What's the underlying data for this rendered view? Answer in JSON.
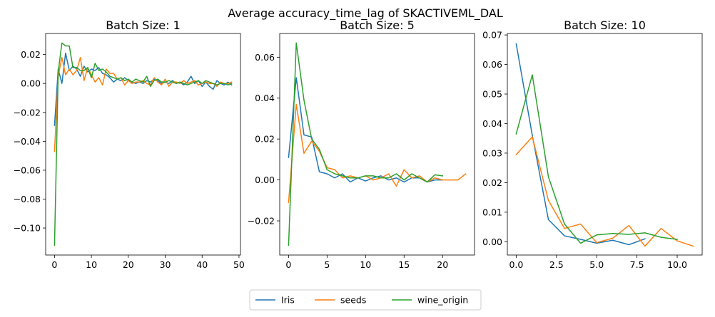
{
  "figure": {
    "title": "Average accuracy_time_lag of SKACTIVEML_DAL"
  },
  "legend": {
    "placement": "bottom-center",
    "entries": [
      {
        "label": "Iris",
        "color": "#1f77b4"
      },
      {
        "label": "seeds",
        "color": "#ff7f0e"
      },
      {
        "label": "wine_origin",
        "color": "#2ca02c"
      }
    ]
  },
  "chart_data": [
    {
      "type": "line",
      "title": "Batch Size: 1",
      "xlim": [
        -2.4,
        50.4
      ],
      "ylim": [
        -0.1187,
        0.0346
      ],
      "xticks": [
        0,
        10,
        20,
        30,
        40,
        50
      ],
      "xtick_labels": [
        "0",
        "10",
        "20",
        "30",
        "40",
        "50"
      ],
      "yticks": [
        -0.1,
        -0.08,
        -0.06,
        -0.04,
        -0.02,
        0.0,
        0.02
      ],
      "ytick_labels": [
        "−0.10",
        "−0.08",
        "−0.06",
        "−0.04",
        "−0.02",
        "0.00",
        "0.02"
      ],
      "grid": false,
      "series": [
        {
          "name": "Iris",
          "color": "#1f77b4",
          "x": [
            0,
            1,
            2,
            3,
            4,
            5,
            6,
            7,
            8,
            9,
            10,
            11,
            12,
            13,
            14,
            15,
            16,
            17,
            18,
            19,
            20,
            21,
            22,
            23,
            24,
            25,
            26,
            27,
            28,
            29,
            30,
            31,
            32,
            33,
            34,
            35,
            36,
            37,
            38,
            39,
            40,
            41,
            42,
            43,
            44,
            45,
            46,
            47,
            48
          ],
          "y": [
            -0.029,
            0.01,
            0.0,
            0.021,
            0.009,
            0.012,
            0.01,
            0.005,
            0.012,
            0.008,
            0.01,
            0.009,
            0.011,
            0.007,
            0.006,
            0.004,
            0.001,
            0.003,
            0.002,
            0.004,
            0.002,
            0.001,
            0.0,
            0.001,
            0.0,
            0.002,
            0.001,
            0.003,
            0.002,
            0.0,
            0.001,
            0.0,
            0.002,
            0.0,
            0.001,
            -0.001,
            0.001,
            0.005,
            0.0,
            0.002,
            -0.002,
            0.001,
            -0.002,
            -0.004,
            0.002,
            0.0,
            -0.001,
            0.001,
            -0.001
          ]
        },
        {
          "name": "seeds",
          "color": "#ff7f0e",
          "x": [
            0,
            1,
            2,
            3,
            4,
            5,
            6,
            7,
            8,
            9,
            10,
            11,
            12,
            13,
            14,
            15,
            16,
            17,
            18,
            19,
            20,
            21,
            22,
            23,
            24,
            25,
            26,
            27,
            28,
            29,
            30,
            31,
            32,
            33,
            34,
            35,
            36,
            37,
            38,
            39,
            40,
            41,
            42,
            43,
            44,
            45,
            46,
            47,
            48
          ],
          "y": [
            -0.047,
            0.005,
            0.018,
            0.006,
            0.01,
            0.006,
            0.009,
            0.018,
            0.002,
            0.011,
            0.006,
            0.001,
            0.004,
            -0.001,
            0.01,
            0.007,
            0.007,
            0.003,
            0.004,
            -0.001,
            0.002,
            0.0,
            0.001,
            0.001,
            0.002,
            0.0,
            -0.001,
            0.004,
            0.001,
            -0.001,
            0.003,
            -0.002,
            0.001,
            0.001,
            0.0,
            0.002,
            0.0,
            0.001,
            0.002,
            -0.001,
            0.0,
            0.001,
            0.0,
            0.0,
            -0.002,
            0.001,
            0.0,
            0.0,
            0.001
          ]
        },
        {
          "name": "wine_origin",
          "color": "#2ca02c",
          "x": [
            0,
            1,
            2,
            3,
            4,
            5,
            6,
            7,
            8,
            9,
            10,
            11,
            12,
            13,
            14,
            15,
            16,
            17,
            18,
            19,
            20,
            21,
            22,
            23,
            24,
            25,
            26,
            27,
            28,
            29,
            30,
            31,
            32,
            33,
            34,
            35,
            36,
            37,
            38,
            39,
            40,
            41,
            42,
            43,
            44,
            45,
            46,
            47,
            48
          ],
          "y": [
            -0.112,
            0.008,
            0.028,
            0.026,
            0.026,
            0.011,
            0.011,
            0.009,
            0.009,
            0.011,
            0.004,
            0.014,
            0.009,
            0.01,
            0.008,
            0.005,
            0.004,
            0.003,
            0.004,
            0.002,
            0.003,
            0.001,
            0.003,
            0.002,
            0.001,
            0.005,
            -0.002,
            0.002,
            0.003,
            0.001,
            0.001,
            0.002,
            0.001,
            0.0,
            0.001,
            0.0,
            -0.001,
            0.0,
            0.001,
            0.002,
            0.0,
            0.002,
            0.001,
            0.0,
            -0.001,
            0.0,
            0.0,
            -0.001,
            0.0
          ]
        }
      ]
    },
    {
      "type": "line",
      "title": "Batch Size: 5",
      "xlim": [
        -1.15,
        24.15
      ],
      "ylim": [
        -0.0367,
        0.0716
      ],
      "xticks": [
        0,
        5,
        10,
        15,
        20
      ],
      "xtick_labels": [
        "0",
        "5",
        "10",
        "15",
        "20"
      ],
      "yticks": [
        -0.02,
        0.0,
        0.02,
        0.04,
        0.06
      ],
      "ytick_labels": [
        "−0.02",
        "0.00",
        "0.02",
        "0.04",
        "0.06"
      ],
      "grid": false,
      "series": [
        {
          "name": "Iris",
          "color": "#1f77b4",
          "x": [
            0,
            1,
            2,
            3,
            4,
            5,
            6,
            7,
            8,
            9,
            10,
            11,
            12,
            13,
            14,
            15,
            16,
            17,
            18,
            19,
            20
          ],
          "y": [
            0.011,
            0.05,
            0.022,
            0.021,
            0.004,
            0.003,
            0.001,
            0.003,
            -0.001,
            0.001,
            -0.0005,
            0.001,
            0.002,
            0.0,
            0.001,
            -0.001,
            0.001,
            0.001,
            -0.001,
            0.0,
            0.0
          ]
        },
        {
          "name": "seeds",
          "color": "#ff7f0e",
          "x": [
            0,
            1,
            2,
            3,
            4,
            5,
            6,
            7,
            8,
            9,
            10,
            11,
            12,
            13,
            14,
            15,
            16,
            17,
            18,
            19,
            20,
            21,
            22,
            23
          ],
          "y": [
            -0.011,
            0.037,
            0.013,
            0.019,
            0.014,
            0.006,
            0.005,
            0.001,
            0.002,
            0.001,
            0.002,
            0.0,
            0.001,
            0.003,
            -0.003,
            0.005,
            0.001,
            0.002,
            -0.001,
            0.001,
            0.0,
            0.0,
            0.0,
            0.003
          ]
        },
        {
          "name": "wine_origin",
          "color": "#2ca02c",
          "x": [
            0,
            1,
            2,
            3,
            4,
            5,
            6,
            7,
            8,
            9,
            10,
            11,
            12,
            13,
            14,
            15,
            16,
            17,
            18,
            19,
            20
          ],
          "y": [
            -0.032,
            0.067,
            0.039,
            0.02,
            0.015,
            0.005,
            0.003,
            0.002,
            0.001,
            0.001,
            0.002,
            0.002,
            0.001,
            0.001,
            0.003,
            0.0,
            0.003,
            0.001,
            -0.001,
            0.0025,
            0.002
          ]
        }
      ]
    },
    {
      "type": "line",
      "title": "Batch Size: 10",
      "xlim": [
        -0.55,
        11.55
      ],
      "ylim": [
        -0.0045,
        0.0705
      ],
      "xticks": [
        0,
        2.5,
        5,
        7.5,
        10
      ],
      "xtick_labels": [
        "0.0",
        "2.5",
        "5.0",
        "7.5",
        "10.0"
      ],
      "yticks": [
        0.0,
        0.01,
        0.02,
        0.03,
        0.04,
        0.05,
        0.06,
        0.07
      ],
      "ytick_labels": [
        "0.00",
        "0.01",
        "0.02",
        "0.03",
        "0.04",
        "0.05",
        "0.06",
        "0.07"
      ],
      "grid": false,
      "series": [
        {
          "name": "Iris",
          "color": "#1f77b4",
          "x": [
            0,
            1,
            2,
            3,
            4,
            5,
            6,
            7,
            8
          ],
          "y": [
            0.067,
            0.036,
            0.0075,
            0.002,
            0.0008,
            -0.0005,
            0.0005,
            -0.001,
            0.001
          ]
        },
        {
          "name": "seeds",
          "color": "#ff7f0e",
          "x": [
            0,
            1,
            2,
            3,
            4,
            5,
            6,
            7,
            8,
            9,
            10,
            11
          ],
          "y": [
            0.0295,
            0.0355,
            0.014,
            0.0045,
            0.006,
            -0.0003,
            0.0012,
            0.0055,
            -0.0015,
            0.0045,
            0.0003,
            -0.0015
          ]
        },
        {
          "name": "wine_origin",
          "color": "#2ca02c",
          "x": [
            0,
            1,
            2,
            3,
            4,
            5,
            6,
            7,
            8,
            9,
            10
          ],
          "y": [
            0.0365,
            0.0565,
            0.022,
            0.006,
            -0.0005,
            0.0023,
            0.0028,
            0.0025,
            0.003,
            0.0015,
            0.0008
          ]
        }
      ]
    }
  ]
}
